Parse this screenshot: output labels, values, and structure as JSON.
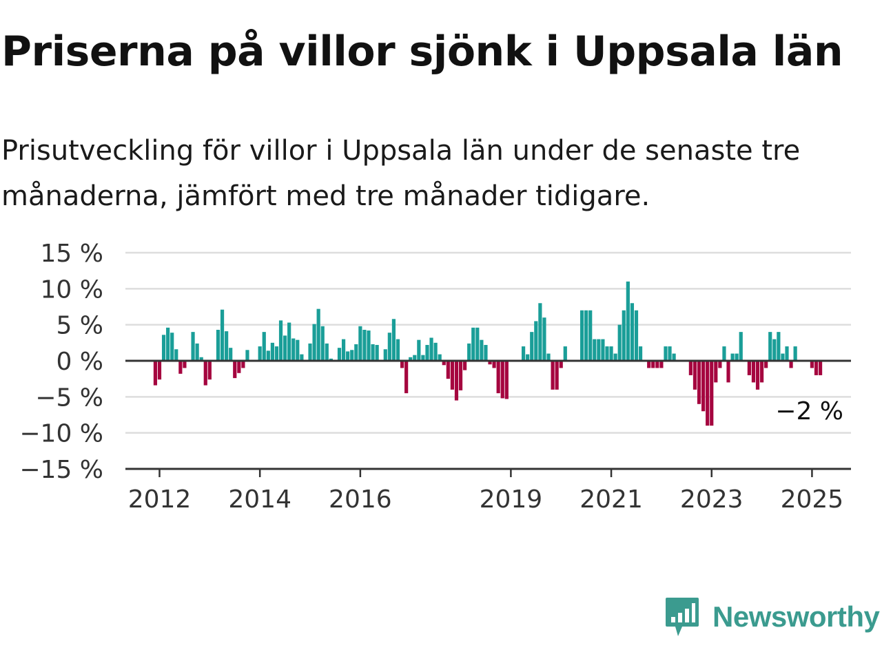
{
  "header": {
    "title": "Priserna på villor sjönk i Uppsala län",
    "subtitle": "Prisutveckling för villor i Uppsala län under de senaste tre månaderna, jämfört med tre månader tidigare."
  },
  "colors": {
    "positive": "#1a9e98",
    "negative": "#a5053f",
    "grid": "#dddddd",
    "axis": "#333333",
    "brand": "#3b9b8f"
  },
  "brand": {
    "name": "Newsworthy",
    "icon": "bar-chart-speech-bubble-icon"
  },
  "chart_data": {
    "type": "bar",
    "start": "2011-12",
    "ylim": [
      -15,
      15
    ],
    "yticks": [
      15,
      10,
      5,
      0,
      -5,
      -10,
      -15
    ],
    "ytick_labels": [
      "15 %",
      "10 %",
      "5 %",
      "0 %",
      "−5 %",
      "−10 %",
      "−15 %"
    ],
    "xticks": [
      {
        "label": "2012",
        "month": "2012-01"
      },
      {
        "label": "2014",
        "month": "2014-01"
      },
      {
        "label": "2016",
        "month": "2016-01"
      },
      {
        "label": "2019",
        "month": "2019-01"
      },
      {
        "label": "2021",
        "month": "2021-01"
      },
      {
        "label": "2023",
        "month": "2023-01"
      },
      {
        "label": "2025",
        "month": "2025-01"
      }
    ],
    "values": [
      -3.4,
      -2.6,
      3.6,
      4.6,
      3.9,
      1.6,
      -1.8,
      -1.0,
      0,
      4.0,
      2.4,
      0.5,
      -3.4,
      -2.6,
      0,
      4.3,
      7.1,
      4.1,
      1.8,
      -2.4,
      -1.7,
      -1.0,
      1.5,
      0,
      0,
      2.0,
      4.0,
      1.4,
      2.5,
      2.0,
      5.6,
      3.5,
      5.3,
      3.1,
      2.9,
      0.9,
      0,
      2.4,
      5.1,
      7.2,
      4.8,
      2.4,
      0.3,
      0,
      1.8,
      3.0,
      1.3,
      1.5,
      2.3,
      4.8,
      4.3,
      4.2,
      2.3,
      2.2,
      0,
      1.6,
      3.9,
      5.8,
      3.0,
      -1.0,
      -4.5,
      0.5,
      0.8,
      2.9,
      0.8,
      2.2,
      3.2,
      2.5,
      0.9,
      -0.6,
      -2.5,
      -4.0,
      -5.5,
      -4.1,
      -1.3,
      2.4,
      4.6,
      4.6,
      2.9,
      2.2,
      -0.5,
      -1.0,
      -4.5,
      -5.2,
      -5.3,
      0,
      0,
      0,
      2.0,
      0.9,
      4.0,
      5.5,
      8.0,
      6.0,
      1.0,
      -4.0,
      -4.0,
      -1.0,
      2.0,
      0,
      0,
      0,
      7.0,
      7.0,
      7.0,
      3.0,
      3.0,
      3.0,
      2.0,
      2.0,
      1.0,
      5.0,
      7.0,
      11.0,
      8.0,
      7.0,
      2.0,
      0,
      -1.0,
      -1.0,
      -1.0,
      -1.0,
      2.0,
      2.0,
      1.0,
      0,
      0,
      0,
      -2.0,
      -4.0,
      -6.0,
      -7.0,
      -9.0,
      -9.0,
      -3.0,
      -1.0,
      2.0,
      -3.0,
      1.0,
      1.0,
      4.0,
      0,
      -2.0,
      -3.0,
      -4.0,
      -3.0,
      -1.0,
      4.0,
      3.0,
      4.0,
      1.0,
      2.0,
      -1.0,
      2.0,
      0,
      0,
      0,
      -1.0,
      -2.0,
      -2.0
    ],
    "last_label": "−2 %"
  }
}
